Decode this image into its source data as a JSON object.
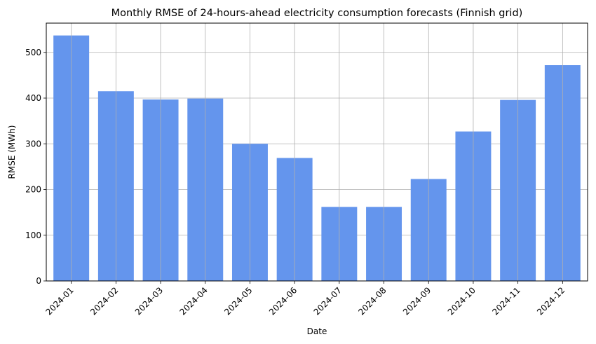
{
  "chart_data": {
    "type": "bar",
    "title": "Monthly RMSE of 24-hours-ahead electricity consumption forecasts (Finnish grid)",
    "xlabel": "Date",
    "ylabel": "RMSE (MWh)",
    "categories": [
      "2024-01",
      "2024-02",
      "2024-03",
      "2024-04",
      "2024-05",
      "2024-06",
      "2024-07",
      "2024-08",
      "2024-09",
      "2024-10",
      "2024-11",
      "2024-12"
    ],
    "values": [
      537,
      415,
      397,
      399,
      300,
      269,
      162,
      162,
      223,
      327,
      396,
      472
    ],
    "ylim": [
      0,
      564
    ],
    "yticks": [
      0,
      100,
      200,
      300,
      400,
      500
    ],
    "grid": true,
    "bar_color": "#6495ed",
    "grid_color": "#b0b0b0"
  }
}
